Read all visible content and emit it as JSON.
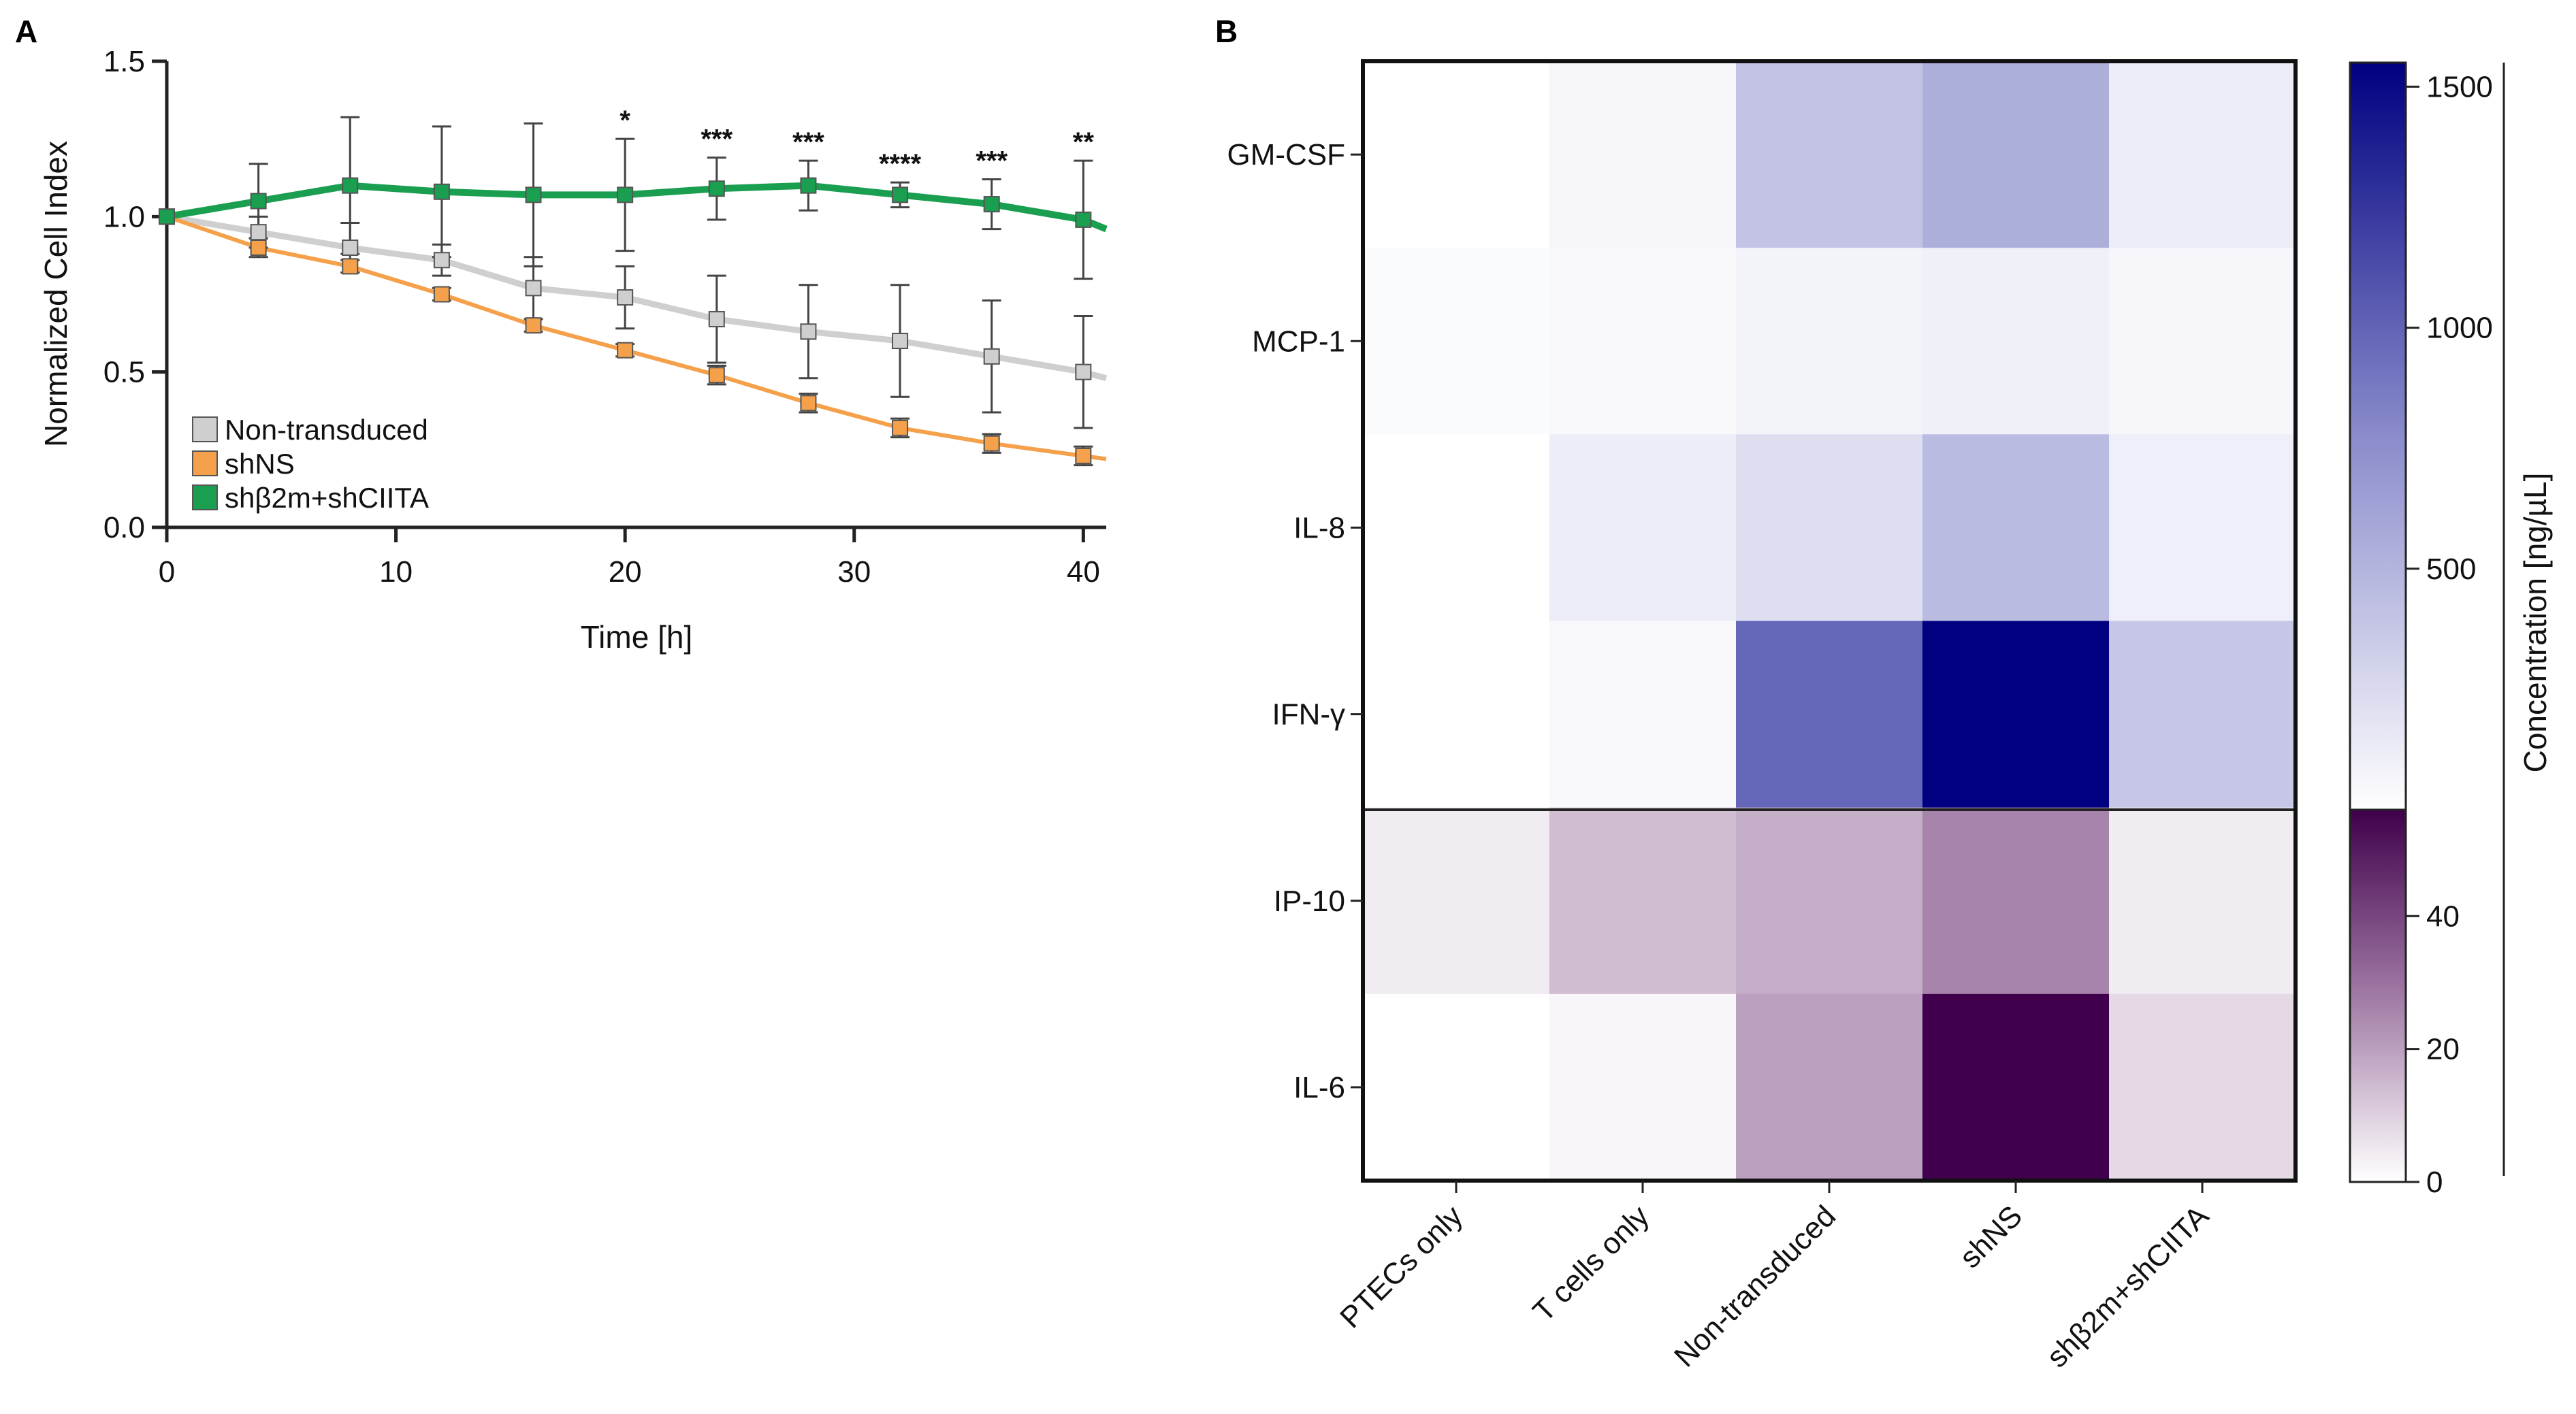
{
  "chart_data": [
    {
      "panel": "A",
      "type": "line",
      "xlabel": "Time [h]",
      "ylabel": "Normalized Cell Index",
      "xlim": [
        0,
        41
      ],
      "ylim": [
        0,
        1.5
      ],
      "xticks": [
        "0",
        "10",
        "20",
        "30",
        "40"
      ],
      "yticks": [
        "0.0",
        "0.5",
        "1.0",
        "1.5"
      ],
      "x": [
        0,
        4,
        8,
        12,
        16,
        20,
        24,
        28,
        32,
        36,
        40
      ],
      "series": [
        {
          "name": "Non-transduced",
          "color": "#cfcfcf",
          "values": [
            1.0,
            0.95,
            0.9,
            0.86,
            0.77,
            0.74,
            0.67,
            0.63,
            0.6,
            0.55,
            0.5
          ],
          "err": [
            0.0,
            0.05,
            0.08,
            0.05,
            0.1,
            0.1,
            0.14,
            0.15,
            0.18,
            0.18,
            0.18
          ],
          "end_value": 0.48
        },
        {
          "name": "shNS",
          "color": "#f5a04a",
          "values": [
            1.0,
            0.9,
            0.84,
            0.75,
            0.65,
            0.57,
            0.49,
            0.4,
            0.32,
            0.27,
            0.23
          ],
          "err": [
            0.0,
            0.03,
            0.02,
            0.02,
            0.02,
            0.02,
            0.03,
            0.03,
            0.03,
            0.03,
            0.03
          ],
          "end_value": 0.22
        },
        {
          "name": "shβ2m+shCIITA",
          "color": "#1a9e50",
          "values": [
            1.0,
            1.05,
            1.1,
            1.08,
            1.07,
            1.07,
            1.09,
            1.1,
            1.07,
            1.04,
            0.99
          ],
          "err": [
            0.0,
            0.12,
            0.22,
            0.21,
            0.23,
            0.18,
            0.1,
            0.08,
            0.04,
            0.08,
            0.19
          ],
          "end_value": 0.96
        }
      ],
      "significance": [
        {
          "x": 20,
          "label": "*"
        },
        {
          "x": 24,
          "label": "***"
        },
        {
          "x": 28,
          "label": "***"
        },
        {
          "x": 32,
          "label": "****"
        },
        {
          "x": 36,
          "label": "***"
        },
        {
          "x": 40,
          "label": "**"
        }
      ],
      "legend_position": "bottom-left"
    },
    {
      "panel": "B",
      "type": "heatmap",
      "columns": [
        "PTECs only",
        "T cells only",
        "Non-transduced",
        "shNS",
        "shβ2m+shCIITA"
      ],
      "rows": [
        "GM-CSF",
        "MCP-1",
        "IL-8",
        "IFN-γ",
        "IP-10",
        "IL-6"
      ],
      "row_scale": [
        "blue",
        "blue",
        "blue",
        "blue",
        "purple",
        "purple"
      ],
      "values": [
        [
          0,
          60,
          400,
          540,
          120
        ],
        [
          30,
          40,
          80,
          100,
          60
        ],
        [
          0,
          120,
          220,
          460,
          110
        ],
        [
          0,
          40,
          980,
          1550,
          380
        ],
        [
          4,
          14,
          17,
          26,
          4
        ],
        [
          0,
          2,
          20,
          56,
          8
        ]
      ],
      "colorbar_label": "Concentration [ng/µL]",
      "colorbar_blue": {
        "min": 0,
        "max": 1550,
        "ticks": [
          "500",
          "1000",
          "1500"
        ],
        "tick_values": [
          500,
          1000,
          1500
        ],
        "color_low": "#ffffff",
        "color_high": "#000080"
      },
      "colorbar_purple": {
        "min": 0,
        "max": 56,
        "ticks": [
          "0",
          "20",
          "40"
        ],
        "tick_values": [
          0,
          20,
          40
        ],
        "color_low": "#ffffff",
        "color_high": "#40004b"
      }
    }
  ]
}
